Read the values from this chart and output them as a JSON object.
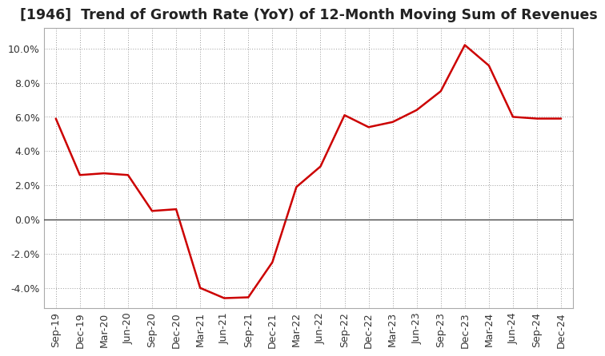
{
  "title": "[1946]  Trend of Growth Rate (YoY) of 12-Month Moving Sum of Revenues",
  "x_labels": [
    "Sep-19",
    "Dec-19",
    "Mar-20",
    "Jun-20",
    "Sep-20",
    "Dec-20",
    "Mar-21",
    "Jun-21",
    "Sep-21",
    "Dec-21",
    "Mar-22",
    "Jun-22",
    "Sep-22",
    "Dec-22",
    "Mar-23",
    "Jun-23",
    "Sep-23",
    "Dec-23",
    "Mar-24",
    "Jun-24",
    "Sep-24",
    "Dec-24"
  ],
  "y_values": [
    5.9,
    2.6,
    2.7,
    2.6,
    0.5,
    0.6,
    -4.0,
    -4.6,
    -4.55,
    -2.5,
    1.9,
    3.1,
    6.1,
    5.4,
    5.7,
    6.4,
    7.5,
    10.2,
    9.0,
    6.0,
    5.9,
    5.9
  ],
  "line_color": "#cc0000",
  "background_color": "#ffffff",
  "plot_bg_color": "#ffffff",
  "grid_color": "#999999",
  "ylim": [
    -5.2,
    11.2
  ],
  "yticks": [
    -4.0,
    -2.0,
    0.0,
    2.0,
    4.0,
    6.0,
    8.0,
    10.0
  ],
  "zero_line_color": "#444444",
  "title_fontsize": 12.5,
  "tick_fontsize": 9,
  "title_color": "#222222"
}
